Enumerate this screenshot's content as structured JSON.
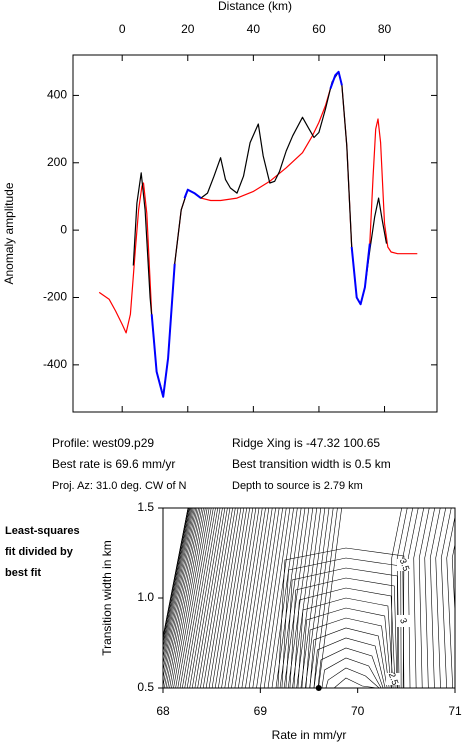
{
  "chart_data": [
    {
      "type": "line",
      "title": "Distance (km)",
      "y_label": "Anomaly amplitude",
      "xlim": [
        -15,
        96
      ],
      "ylim": [
        -540,
        520
      ],
      "xticks": [
        0,
        20,
        40,
        60,
        80
      ],
      "yticks": [
        -400,
        -200,
        0,
        200,
        400
      ],
      "series": [
        {
          "color": "#ff0000",
          "x": [
            -7,
            -4,
            -2,
            0,
            1.2,
            2.5,
            4,
            5,
            6,
            6.5,
            7.5,
            9,
            10.5,
            12.5,
            14,
            16,
            18,
            20,
            22,
            24,
            27,
            30,
            35,
            40,
            45,
            50,
            55,
            58,
            60,
            62,
            63.5,
            65,
            66,
            67,
            68.5,
            70,
            71.5,
            72.7,
            74,
            75.5,
            76.5,
            77.3,
            78,
            78.8,
            80,
            81,
            82,
            84,
            86,
            90
          ],
          "values": [
            -185,
            -205,
            -240,
            -280,
            -305,
            -250,
            -60,
            60,
            130,
            140,
            50,
            -250,
            -420,
            -495,
            -380,
            -100,
            60,
            120,
            110,
            95,
            88,
            88,
            95,
            115,
            145,
            185,
            230,
            280,
            320,
            370,
            420,
            460,
            470,
            430,
            250,
            -50,
            -200,
            -220,
            -170,
            -40,
            160,
            300,
            330,
            260,
            20,
            -50,
            -65,
            -70,
            -70,
            -70
          ]
        },
        {
          "color": "#000000",
          "x": [
            3.4,
            4.5,
            5.8,
            7,
            8.5,
            10.5,
            12.5,
            14,
            16,
            18,
            20,
            22,
            24,
            26,
            28,
            30,
            31.5,
            33,
            35,
            37,
            39,
            41.5,
            43,
            45,
            46.5,
            48,
            50,
            52,
            55,
            57,
            58.5,
            60,
            62,
            64,
            66,
            67,
            68.5,
            70,
            71.5,
            72.7,
            74,
            75.5,
            77,
            78.2,
            79.3,
            80.6
          ],
          "values": [
            -105,
            80,
            170,
            60,
            -200,
            -420,
            -490,
            -380,
            -100,
            60,
            120,
            110,
            95,
            110,
            160,
            215,
            150,
            125,
            110,
            160,
            260,
            315,
            220,
            140,
            145,
            175,
            235,
            280,
            335,
            300,
            275,
            290,
            360,
            440,
            470,
            430,
            250,
            -50,
            -200,
            -220,
            -170,
            -60,
            40,
            95,
            30,
            -40
          ]
        },
        {
          "color": "#0000ff",
          "x": [
            9,
            10.5,
            12.5,
            14,
            16,
            18,
            19,
            20,
            22,
            24,
            40,
            63.5,
            65,
            66,
            67,
            68.5,
            70,
            71.5,
            72.7,
            74,
            75.5
          ],
          "values": [
            -250,
            -420,
            -495,
            -380,
            -100,
            null,
            95,
            120,
            110,
            95,
            null,
            420,
            460,
            470,
            430,
            null,
            -50,
            -200,
            -220,
            -170,
            -40
          ]
        }
      ],
      "annotations": [
        "Profile: west09.p29",
        "Best rate is 69.6 mm/yr",
        "Proj. Az: 31.0 deg. CW of N",
        "Ridge Xing is -47.32 100.65",
        "Best transition width is 0.5 km",
        "Depth to source is   2.79 km"
      ]
    },
    {
      "type": "contour",
      "note_lines": [
        "Least-squares",
        "fit divided by",
        "best fit"
      ],
      "x_label": "Rate in mm/yr",
      "y_label": "Transition width in km",
      "xlim": [
        68,
        71
      ],
      "ylim": [
        0.5,
        1.5
      ],
      "xticks": [
        68,
        69,
        70,
        71
      ],
      "yticks": [
        0.5,
        {
          "value": 1,
          "label": "1.0"
        },
        1.5
      ],
      "contour_labels": [
        3.5,
        3,
        2.5
      ],
      "best_point": {
        "x": 69.6,
        "y": 0.5
      }
    }
  ]
}
